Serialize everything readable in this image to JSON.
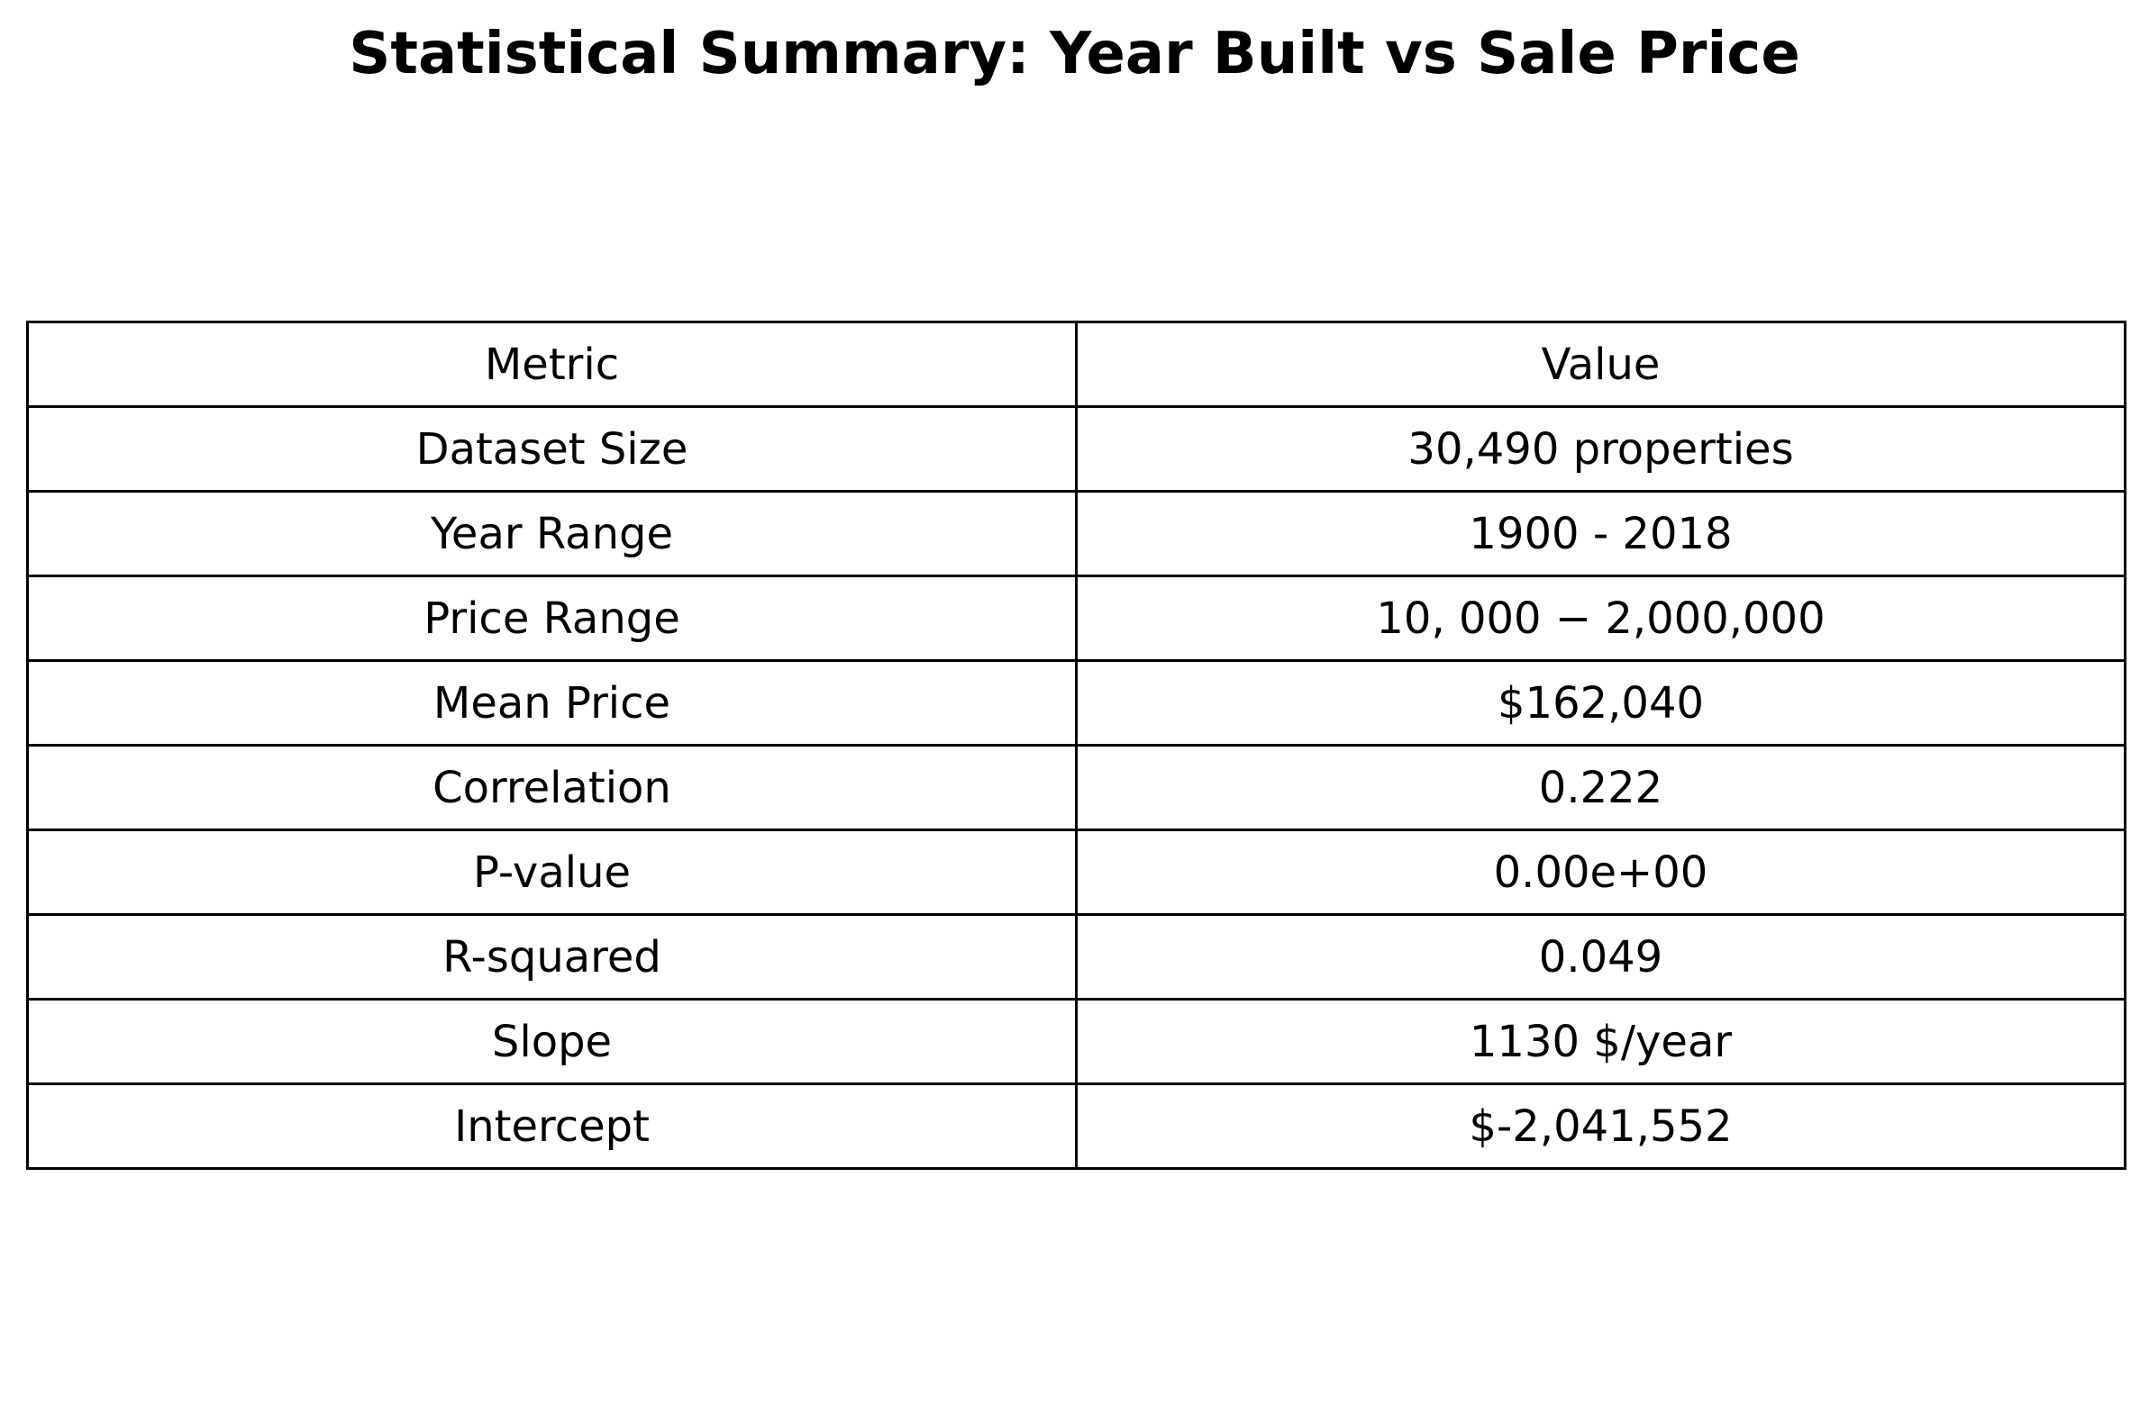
{
  "chart_data": {
    "type": "table",
    "title": "Statistical Summary: Year Built vs Sale Price",
    "columns": [
      "Metric",
      "Value"
    ],
    "rows": [
      [
        "Dataset Size",
        "30,490 properties"
      ],
      [
        "Year Range",
        "1900 - 2018"
      ],
      [
        "Price Range",
        "10, 000 − 2,000,000"
      ],
      [
        "Mean Price",
        "$162,040"
      ],
      [
        "Correlation",
        "0.222"
      ],
      [
        "P-value",
        "0.00e+00"
      ],
      [
        "R-squared",
        "0.049"
      ],
      [
        "Slope",
        "1130 $/year"
      ],
      [
        "Intercept",
        "$-2,041,552"
      ]
    ]
  }
}
